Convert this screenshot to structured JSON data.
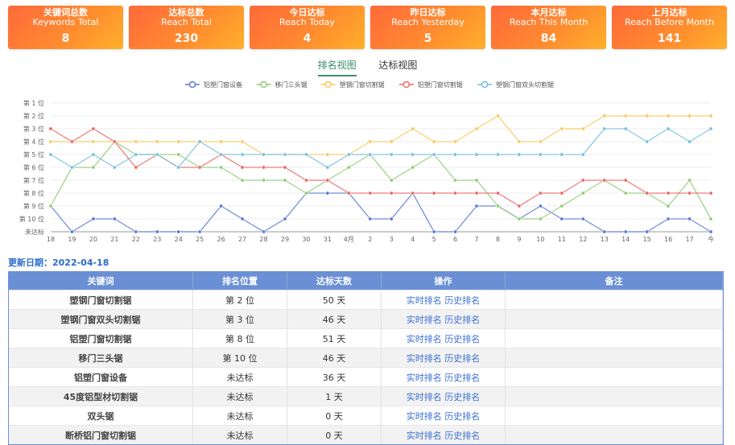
{
  "cards": [
    {
      "title_cn": "关键词总数",
      "title_en": "Keywords Total",
      "value": "8"
    },
    {
      "title_cn": "达标总数",
      "title_en": "Reach Total",
      "value": "230"
    },
    {
      "title_cn": "今日达标",
      "title_en": "Reach Today",
      "value": "4"
    },
    {
      "title_cn": "昨日达标",
      "title_en": "Reach Yesterday",
      "value": "5"
    },
    {
      "title_cn": "本月达标",
      "title_en": "Reach This Month",
      "value": "84"
    },
    {
      "title_cn": "上月达标",
      "title_en": "Reach Before Month",
      "value": "141"
    }
  ],
  "tabs": [
    "排名视图",
    "达标视图"
  ],
  "chart_data": {
    "type": "line",
    "categories": [
      "18",
      "19",
      "20",
      "21",
      "22",
      "23",
      "24",
      "25",
      "26",
      "27",
      "28",
      "29",
      "30",
      "31",
      "4月",
      "2",
      "3",
      "4",
      "5",
      "6",
      "7",
      "8",
      "9",
      "10",
      "11",
      "12",
      "13",
      "14",
      "15",
      "16",
      "17",
      "今"
    ],
    "y_labels": [
      "第 1 位",
      "第 2 位",
      "第 3 位",
      "第 4 位",
      "第 5 位",
      "第 6 位",
      "第 7 位",
      "第 8 位",
      "第 9 位",
      "第 10 位",
      "未达标"
    ],
    "series": [
      {
        "name": "铝塑门窗设备",
        "color": "#5b7bd5",
        "values": [
          9,
          11,
          10,
          10,
          11,
          11,
          11,
          11,
          9,
          10,
          11,
          10,
          8,
          8,
          8,
          10,
          10,
          8,
          11,
          11,
          9,
          9,
          10,
          9,
          10,
          10,
          11,
          11,
          11,
          10,
          10,
          11
        ]
      },
      {
        "name": "移门三头锯",
        "color": "#91cc75",
        "values": [
          9,
          6,
          6,
          4,
          5,
          5,
          5,
          6,
          6,
          7,
          7,
          7,
          8,
          7,
          6,
          5,
          7,
          6,
          5,
          7,
          7,
          9,
          10,
          10,
          9,
          8,
          7,
          8,
          8,
          9,
          7,
          10
        ]
      },
      {
        "name": "塑钢门窗切割锯",
        "color": "#fac858",
        "values": [
          4,
          4,
          4,
          4,
          4,
          4,
          4,
          4,
          4,
          4,
          5,
          5,
          5,
          5,
          5,
          4,
          4,
          3,
          4,
          4,
          3,
          2,
          4,
          4,
          3,
          3,
          2,
          2,
          2,
          2,
          2,
          2
        ]
      },
      {
        "name": "铝塑门窗切割锯",
        "color": "#ee6666",
        "values": [
          3,
          4,
          3,
          4,
          6,
          5,
          6,
          6,
          5,
          6,
          6,
          6,
          7,
          7,
          8,
          8,
          8,
          8,
          8,
          8,
          8,
          8,
          9,
          8,
          8,
          7,
          7,
          7,
          8,
          8,
          8,
          8
        ]
      },
      {
        "name": "塑钢门窗双头切割锯",
        "color": "#73c0de",
        "values": [
          5,
          6,
          5,
          6,
          5,
          5,
          6,
          4,
          5,
          5,
          5,
          5,
          5,
          6,
          5,
          5,
          5,
          5,
          5,
          5,
          5,
          5,
          5,
          5,
          5,
          5,
          3,
          3,
          4,
          3,
          4,
          3
        ]
      }
    ]
  },
  "update": {
    "label": "更新日期：",
    "date": "2022-04-18"
  },
  "table": {
    "headers": [
      "关键词",
      "排名位置",
      "达标天数",
      "操作",
      "备注"
    ],
    "op1": "实时排名",
    "op2": "历史排名",
    "rows": [
      {
        "kw": "塑钢门窗切割锯",
        "rank": "第 2 位",
        "days": "50 天",
        "note": ""
      },
      {
        "kw": "塑钢门窗双头切割锯",
        "rank": "第 3 位",
        "days": "46 天",
        "note": ""
      },
      {
        "kw": "铝塑门窗切割锯",
        "rank": "第 8 位",
        "days": "51 天",
        "note": ""
      },
      {
        "kw": "移门三头锯",
        "rank": "第 10 位",
        "days": "46 天",
        "note": ""
      },
      {
        "kw": "铝塑门窗设备",
        "rank": "未达标",
        "days": "36 天",
        "note": ""
      },
      {
        "kw": "45度铝型材切割锯",
        "rank": "未达标",
        "days": "1 天",
        "note": ""
      },
      {
        "kw": "双头锯",
        "rank": "未达标",
        "days": "0 天",
        "note": ""
      },
      {
        "kw": "断桥铝门窗切割锯",
        "rank": "未达标",
        "days": "0 天",
        "note": ""
      }
    ]
  }
}
